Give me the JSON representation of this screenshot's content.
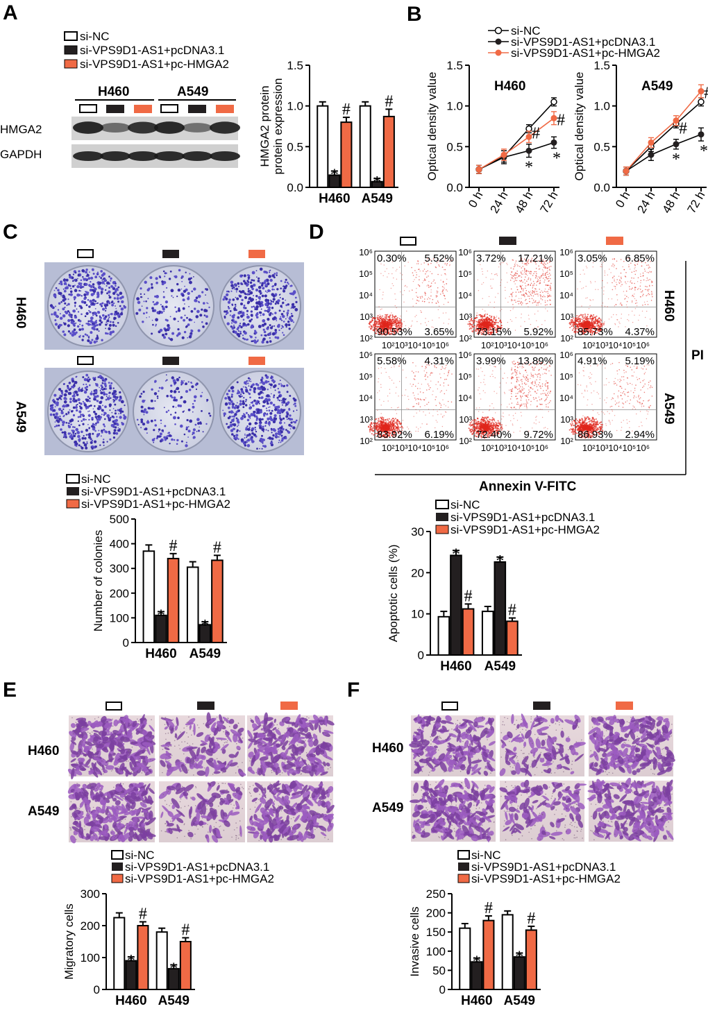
{
  "figure": {
    "panel_labels": [
      "A",
      "B",
      "C",
      "D",
      "E",
      "F"
    ],
    "groups": [
      "si-NC",
      "si-VPS9D1-AS1+pcDNA3.1",
      "si-VPS9D1-AS1+pc-HMGA2"
    ],
    "colors": {
      "si-NC": "#ffffff",
      "pcDNA": "#231f20",
      "pcHMGA2": "#f06a45",
      "outline": "#000000"
    },
    "cell_lines": [
      "H460",
      "A549"
    ],
    "blot": {
      "bands": [
        "HMGA2",
        "GAPDH"
      ]
    },
    "flow": {
      "x_label": "Annexin V-FITC",
      "y_label": "PI",
      "y_ticks": [
        "10⁶",
        "10⁵",
        "10⁴",
        "10³",
        "10²"
      ],
      "x_ticks": "10²10³10⁴10⁵10⁶",
      "quadrants": [
        [
          "0.30%",
          "5.52%",
          "90.53%",
          "3.65%"
        ],
        [
          "3.72%",
          "17.21%",
          "73.15%",
          "5.92%"
        ],
        [
          "3.05%",
          "6.85%",
          "85.73%",
          "4.37%"
        ],
        [
          "5.58%",
          "4.31%",
          "83.92%",
          "6.19%"
        ],
        [
          "3.99%",
          "13.89%",
          "72.40%",
          "9.72%"
        ],
        [
          "4.91%",
          "5.19%",
          "86.93%",
          "2.94%"
        ]
      ]
    },
    "sig_star": "*",
    "sig_hash": "#"
  },
  "chart_data": [
    {
      "panel": "A",
      "type": "bar",
      "categories": [
        "H460",
        "A549"
      ],
      "ylabel": "HMGA2 protein\nprotein expression",
      "ylim": [
        0,
        1.5
      ],
      "yticks": [
        "0.0",
        "0.5",
        "1.0",
        "1.5"
      ],
      "series": [
        {
          "name": "si-NC",
          "values": [
            1.0,
            1.0
          ],
          "err": [
            0.05,
            0.05
          ]
        },
        {
          "name": "si-VPS9D1-AS1+pcDNA3.1",
          "values": [
            0.15,
            0.07
          ],
          "err": [
            0.05,
            0.04
          ]
        },
        {
          "name": "si-VPS9D1-AS1+pc-HMGA2",
          "values": [
            0.8,
            0.87
          ],
          "err": [
            0.06,
            0.09
          ]
        }
      ]
    },
    {
      "panel": "B",
      "type": "line",
      "title": "H460",
      "x": [
        "0 h",
        "24 h",
        "48 h",
        "72 h"
      ],
      "ylabel": "Optical density value",
      "ylim": [
        0,
        1.5
      ],
      "yticks": [
        "0.0",
        "0.5",
        "1.0",
        "1.5"
      ],
      "series": [
        {
          "name": "si-NC",
          "values": [
            0.22,
            0.38,
            0.72,
            1.05
          ],
          "err": [
            0.05,
            0.07,
            0.05,
            0.05
          ]
        },
        {
          "name": "si-VPS9D1-AS1+pcDNA3.1",
          "values": [
            0.22,
            0.37,
            0.45,
            0.55
          ],
          "err": [
            0.05,
            0.08,
            0.08,
            0.07
          ]
        },
        {
          "name": "si-VPS9D1-AS1+pc-HMGA2",
          "values": [
            0.22,
            0.4,
            0.62,
            0.85
          ],
          "err": [
            0.05,
            0.07,
            0.07,
            0.08
          ]
        }
      ]
    },
    {
      "panel": "B",
      "type": "line",
      "title": "A549",
      "x": [
        "0 h",
        "24 h",
        "48 h",
        "72 h"
      ],
      "ylabel": "Optical density value",
      "ylim": [
        0,
        1.5
      ],
      "yticks": [
        "0.0",
        "0.5",
        "1.0",
        "1.5"
      ],
      "series": [
        {
          "name": "si-NC",
          "values": [
            0.2,
            0.5,
            0.78,
            1.05
          ],
          "err": [
            0.05,
            0.06,
            0.05,
            0.05
          ]
        },
        {
          "name": "si-VPS9D1-AS1+pcDNA3.1",
          "values": [
            0.2,
            0.4,
            0.53,
            0.65
          ],
          "err": [
            0.05,
            0.07,
            0.06,
            0.08
          ]
        },
        {
          "name": "si-VPS9D1-AS1+pc-HMGA2",
          "values": [
            0.2,
            0.55,
            0.82,
            1.18
          ],
          "err": [
            0.05,
            0.06,
            0.06,
            0.08
          ]
        }
      ]
    },
    {
      "panel": "C",
      "type": "bar",
      "categories": [
        "H460",
        "A549"
      ],
      "ylabel": "Number of colonies",
      "ylim": [
        0,
        500
      ],
      "yticks": [
        "0",
        "100",
        "200",
        "300",
        "400",
        "500"
      ],
      "series": [
        {
          "name": "si-NC",
          "values": [
            370,
            305
          ],
          "err": [
            25,
            22
          ]
        },
        {
          "name": "si-VPS9D1-AS1+pcDNA3.1",
          "values": [
            110,
            72
          ],
          "err": [
            15,
            12
          ]
        },
        {
          "name": "si-VPS9D1-AS1+pc-HMGA2",
          "values": [
            340,
            333
          ],
          "err": [
            20,
            20
          ]
        }
      ]
    },
    {
      "panel": "D",
      "type": "bar",
      "categories": [
        "H460",
        "A549"
      ],
      "ylabel": "Apoptotic cells (%)",
      "ylim": [
        0,
        30
      ],
      "yticks": [
        "0",
        "10",
        "20",
        "30"
      ],
      "series": [
        {
          "name": "si-NC",
          "values": [
            9.3,
            10.6
          ],
          "err": [
            1.3,
            1.2
          ]
        },
        {
          "name": "si-VPS9D1-AS1+pcDNA3.1",
          "values": [
            24.2,
            22.6
          ],
          "err": [
            1.2,
            1.2
          ]
        },
        {
          "name": "si-VPS9D1-AS1+pc-HMGA2",
          "values": [
            11.2,
            8.2
          ],
          "err": [
            1.2,
            0.8
          ]
        }
      ]
    },
    {
      "panel": "E",
      "type": "bar",
      "categories": [
        "H460",
        "A549"
      ],
      "ylabel": "Migratory cells",
      "ylim": [
        0,
        300
      ],
      "yticks": [
        "0",
        "100",
        "200",
        "300"
      ],
      "series": [
        {
          "name": "si-NC",
          "values": [
            225,
            180
          ],
          "err": [
            15,
            12
          ]
        },
        {
          "name": "si-VPS9D1-AS1+pcDNA3.1",
          "values": [
            90,
            65
          ],
          "err": [
            12,
            12
          ]
        },
        {
          "name": "si-VPS9D1-AS1+pc-HMGA2",
          "values": [
            200,
            150
          ],
          "err": [
            12,
            12
          ]
        }
      ]
    },
    {
      "panel": "F",
      "type": "bar",
      "categories": [
        "H460",
        "A549"
      ],
      "ylabel": "Invasive cells",
      "ylim": [
        0,
        250
      ],
      "yticks": [
        "0",
        "50",
        "100",
        "150",
        "200",
        "250"
      ],
      "series": [
        {
          "name": "si-NC",
          "values": [
            160,
            195
          ],
          "err": [
            12,
            10
          ]
        },
        {
          "name": "si-VPS9D1-AS1+pcDNA3.1",
          "values": [
            72,
            85
          ],
          "err": [
            10,
            10
          ]
        },
        {
          "name": "si-VPS9D1-AS1+pc-HMGA2",
          "values": [
            180,
            155
          ],
          "err": [
            12,
            10
          ]
        }
      ]
    }
  ]
}
